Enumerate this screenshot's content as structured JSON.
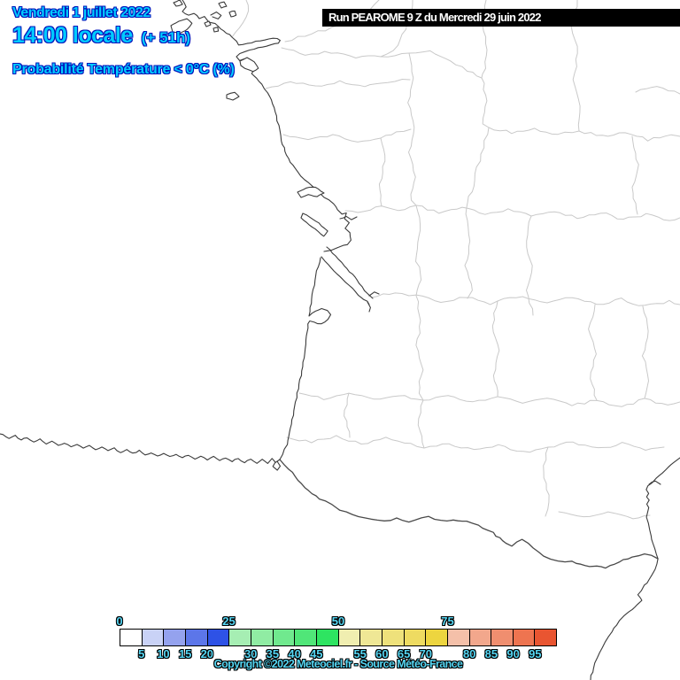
{
  "header": {
    "date": "Vendredi 1 juillet 2022",
    "time": "14:00 locale",
    "offset": "(+ 51h)",
    "parameter": "Probabilité Température < 0°C (%)",
    "text_color": "#00ccff",
    "outline_color": "#0013bb"
  },
  "run_box": {
    "label": "Run PEAROME 9 Z du Mercredi 29 juin 2022",
    "background": "#000000",
    "text_color": "#ffffff"
  },
  "map": {
    "background": "#ffffff",
    "coast_color": "#3b3b3b",
    "department_border_color": "#c9c9c9",
    "country_border_color": "#4a4a4a"
  },
  "legend": {
    "scale_min": 0,
    "scale_max": 100,
    "scale_step": 5,
    "label_color": "#55d5f2",
    "colors": [
      "#ffffff",
      "#c9d2f6",
      "#94a2ee",
      "#5c76e9",
      "#2e52e6",
      "#a6eeb3",
      "#90eca3",
      "#70e98e",
      "#50e678",
      "#2ee461",
      "#f0eeb0",
      "#efe795",
      "#eee17b",
      "#eedb61",
      "#edd53f",
      "#f4c0a9",
      "#f2a78c",
      "#f08e6f",
      "#ee7450",
      "#e95531"
    ],
    "ticks": [
      {
        "label": "0",
        "index": 0,
        "row": "top"
      },
      {
        "label": "5",
        "index": 1,
        "row": "bottom"
      },
      {
        "label": "10",
        "index": 2,
        "row": "bottom"
      },
      {
        "label": "15",
        "index": 3,
        "row": "bottom"
      },
      {
        "label": "20",
        "index": 4,
        "row": "bottom"
      },
      {
        "label": "25",
        "index": 5,
        "row": "top"
      },
      {
        "label": "30",
        "index": 6,
        "row": "bottom"
      },
      {
        "label": "35",
        "index": 7,
        "row": "bottom"
      },
      {
        "label": "40",
        "index": 8,
        "row": "bottom"
      },
      {
        "label": "45",
        "index": 9,
        "row": "bottom"
      },
      {
        "label": "50",
        "index": 10,
        "row": "top"
      },
      {
        "label": "55",
        "index": 11,
        "row": "bottom"
      },
      {
        "label": "60",
        "index": 12,
        "row": "bottom"
      },
      {
        "label": "65",
        "index": 13,
        "row": "bottom"
      },
      {
        "label": "70",
        "index": 14,
        "row": "bottom"
      },
      {
        "label": "75",
        "index": 15,
        "row": "top"
      },
      {
        "label": "80",
        "index": 16,
        "row": "bottom"
      },
      {
        "label": "85",
        "index": 17,
        "row": "bottom"
      },
      {
        "label": "90",
        "index": 18,
        "row": "bottom"
      },
      {
        "label": "95",
        "index": 19,
        "row": "bottom"
      }
    ]
  },
  "footer": {
    "copyright": "Copyright ©2022 Meteociel.fr - Source Météo-France"
  }
}
